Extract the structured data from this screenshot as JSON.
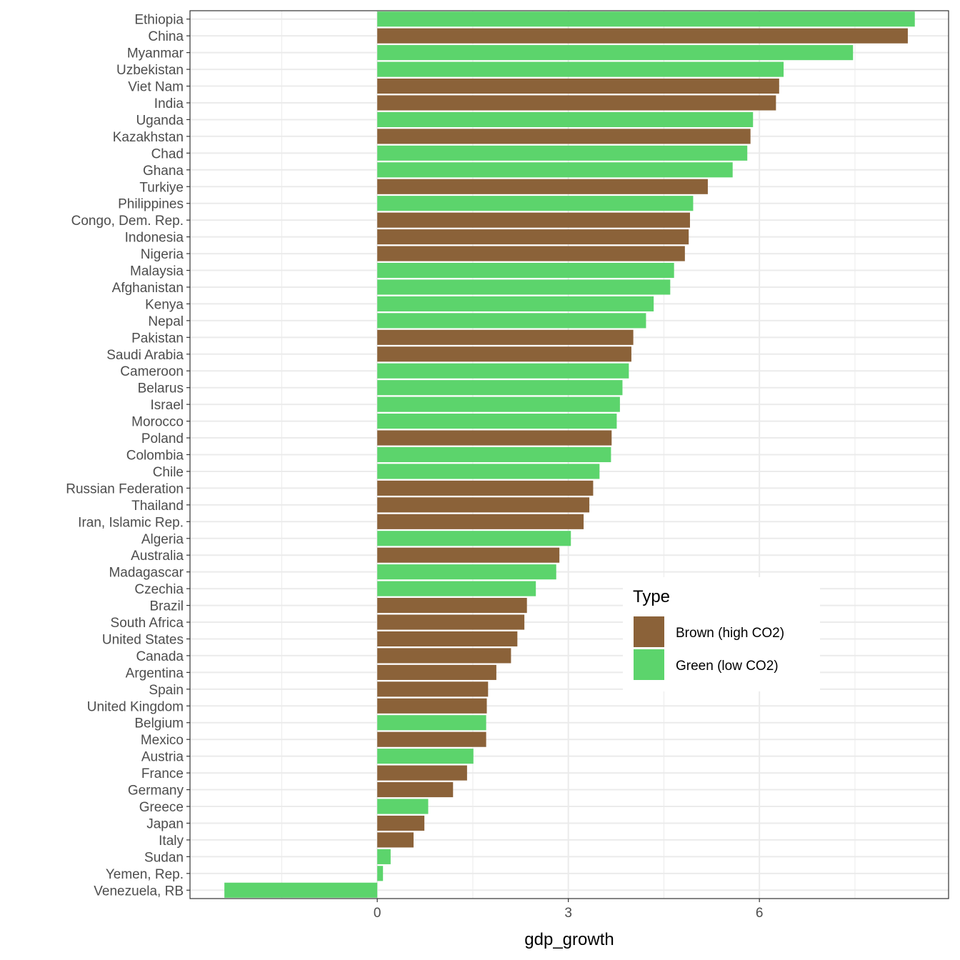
{
  "chart_data": {
    "type": "bar",
    "orientation": "horizontal",
    "title": "",
    "xlabel": "gdp_growth",
    "ylabel": "",
    "xlim": [
      -2.94,
      8.97
    ],
    "xticks": [
      0,
      3,
      6
    ],
    "grid": true,
    "legend": {
      "title": "Type",
      "position": "right-center",
      "entries": [
        {
          "name": "Brown (high CO2)",
          "color": "#8B6239"
        },
        {
          "name": "Green (low CO2)",
          "color": "#5CD46C"
        }
      ]
    },
    "categories": [
      "Ethiopia",
      "China",
      "Myanmar",
      "Uzbekistan",
      "Viet Nam",
      "India",
      "Uganda",
      "Kazakhstan",
      "Chad",
      "Ghana",
      "Turkiye",
      "Philippines",
      "Congo, Dem. Rep.",
      "Indonesia",
      "Nigeria",
      "Malaysia",
      "Afghanistan",
      "Kenya",
      "Nepal",
      "Pakistan",
      "Saudi Arabia",
      "Cameroon",
      "Belarus",
      "Israel",
      "Morocco",
      "Poland",
      "Colombia",
      "Chile",
      "Russian Federation",
      "Thailand",
      "Iran, Islamic Rep.",
      "Algeria",
      "Australia",
      "Madagascar",
      "Czechia",
      "Brazil",
      "South Africa",
      "United States",
      "Canada",
      "Argentina",
      "Spain",
      "United Kingdom",
      "Belgium",
      "Mexico",
      "Austria",
      "France",
      "Germany",
      "Greece",
      "Japan",
      "Italy",
      "Sudan",
      "Yemen, Rep.",
      "Venezuela, RB"
    ],
    "values": [
      8.44,
      8.33,
      7.47,
      6.38,
      6.31,
      6.26,
      5.9,
      5.86,
      5.81,
      5.58,
      5.19,
      4.96,
      4.91,
      4.89,
      4.83,
      4.66,
      4.6,
      4.34,
      4.22,
      4.02,
      3.99,
      3.95,
      3.85,
      3.81,
      3.76,
      3.68,
      3.67,
      3.49,
      3.39,
      3.33,
      3.24,
      3.04,
      2.86,
      2.81,
      2.49,
      2.35,
      2.31,
      2.2,
      2.1,
      1.87,
      1.74,
      1.72,
      1.71,
      1.71,
      1.51,
      1.41,
      1.19,
      0.8,
      0.74,
      0.57,
      0.21,
      0.09,
      -2.4
    ],
    "types": [
      "Green",
      "Brown",
      "Green",
      "Green",
      "Brown",
      "Brown",
      "Green",
      "Brown",
      "Green",
      "Green",
      "Brown",
      "Green",
      "Brown",
      "Brown",
      "Brown",
      "Green",
      "Green",
      "Green",
      "Green",
      "Brown",
      "Brown",
      "Green",
      "Green",
      "Green",
      "Green",
      "Brown",
      "Green",
      "Green",
      "Brown",
      "Brown",
      "Brown",
      "Green",
      "Brown",
      "Green",
      "Green",
      "Brown",
      "Brown",
      "Brown",
      "Brown",
      "Brown",
      "Brown",
      "Brown",
      "Green",
      "Brown",
      "Green",
      "Brown",
      "Brown",
      "Green",
      "Brown",
      "Brown",
      "Green",
      "Green",
      "Green"
    ]
  }
}
